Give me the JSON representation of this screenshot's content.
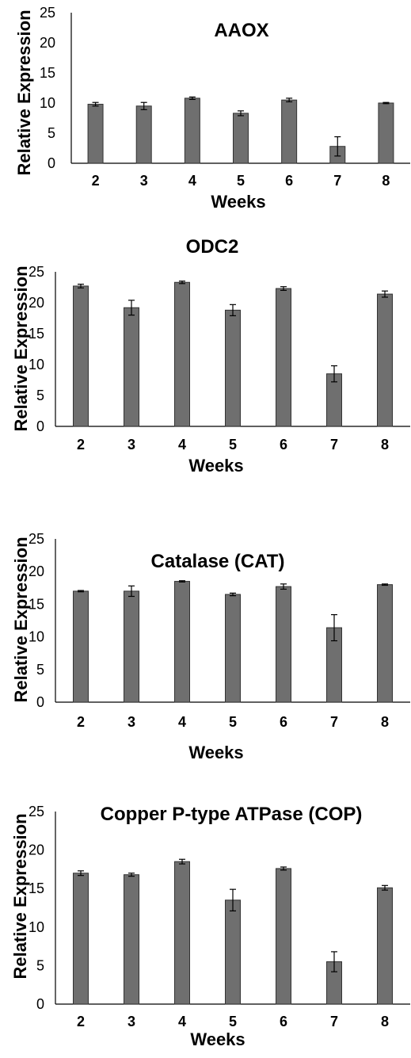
{
  "chart_data": [
    {
      "type": "bar",
      "title": "AAOX",
      "xlabel": "Weeks",
      "ylabel": "Relative Expression",
      "categories": [
        "2",
        "3",
        "4",
        "5",
        "6",
        "7",
        "8"
      ],
      "values": [
        9.8,
        9.5,
        10.8,
        8.3,
        10.5,
        2.8,
        10.0
      ],
      "errors": [
        0.3,
        0.6,
        0.2,
        0.4,
        0.3,
        1.6,
        0.1
      ],
      "ylim": [
        0,
        25
      ],
      "yticks": [
        "0",
        "5",
        "10",
        "15",
        "20",
        "25"
      ],
      "bar_color": "#6f6f6f",
      "grid": false
    },
    {
      "type": "bar",
      "title": "ODC2",
      "xlabel": "Weeks",
      "ylabel": "Relative Expression",
      "categories": [
        "2",
        "3",
        "4",
        "5",
        "6",
        "7",
        "8"
      ],
      "values": [
        22.7,
        19.2,
        23.3,
        18.8,
        22.3,
        8.5,
        21.4
      ],
      "errors": [
        0.3,
        1.2,
        0.2,
        0.9,
        0.3,
        1.3,
        0.5
      ],
      "ylim": [
        0,
        25
      ],
      "yticks": [
        "0",
        "5",
        "10",
        "15",
        "20",
        "25"
      ],
      "bar_color": "#6f6f6f",
      "grid": false
    },
    {
      "type": "bar",
      "title": "Catalase (CAT)",
      "xlabel": "Weeks",
      "ylabel": "Relative Expression",
      "categories": [
        "2",
        "3",
        "4",
        "5",
        "6",
        "7",
        "8"
      ],
      "values": [
        17.0,
        17.0,
        18.5,
        16.5,
        17.7,
        11.4,
        18.0
      ],
      "errors": [
        0.1,
        0.8,
        0.1,
        0.2,
        0.4,
        2.0,
        0.1
      ],
      "ylim": [
        0,
        25
      ],
      "yticks": [
        "0",
        "5",
        "10",
        "15",
        "20",
        "25"
      ],
      "bar_color": "#6f6f6f",
      "grid": false
    },
    {
      "type": "bar",
      "title": "Copper P-type ATPase  (COP)",
      "xlabel": "Weeks",
      "ylabel": "Relative Expression",
      "categories": [
        "2",
        "3",
        "4",
        "5",
        "6",
        "7",
        "8"
      ],
      "values": [
        17.0,
        16.8,
        18.5,
        13.5,
        17.6,
        5.5,
        15.1
      ],
      "errors": [
        0.3,
        0.2,
        0.3,
        1.4,
        0.2,
        1.3,
        0.3
      ],
      "ylim": [
        0,
        25
      ],
      "yticks": [
        "0",
        "5",
        "10",
        "15",
        "20",
        "25"
      ],
      "bar_color": "#6f6f6f",
      "grid": false
    }
  ]
}
